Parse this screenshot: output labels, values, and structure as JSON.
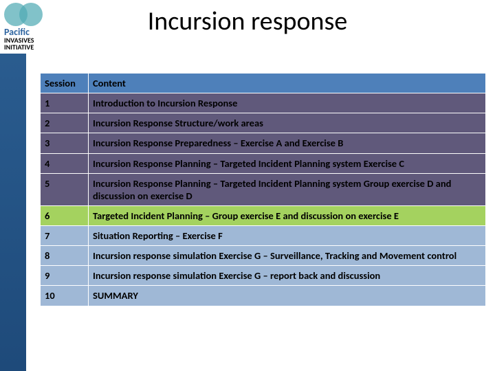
{
  "title": "Incursion response",
  "logo": {
    "brand_line1": "Pacific",
    "brand_line2": "INVASIVES",
    "brand_line3": "INITIATIVE"
  },
  "table": {
    "header": {
      "session": "Session",
      "content": "Content"
    },
    "rows": [
      {
        "n": "1",
        "c": "Introduction to Incursion Response",
        "style": "dark"
      },
      {
        "n": "2",
        "c": "Incursion Response Structure/work areas",
        "style": "dark"
      },
      {
        "n": "3",
        "c": "Incursion Response Preparedness – Exercise A and Exercise B",
        "style": "dark"
      },
      {
        "n": "4",
        "c": "Incursion Response Planning – Targeted Incident Planning system Exercise C",
        "style": "dark"
      },
      {
        "n": "5",
        "c": "Incursion Response Planning – Targeted Incident Planning system Group exercise D and discussion on exercise D",
        "style": "dark"
      },
      {
        "n": "6",
        "c": "Targeted Incident Planning – Group exercise E and discussion on exercise E",
        "style": "green"
      },
      {
        "n": "7",
        "c": "Situation Reporting – Exercise F",
        "style": "lightblue"
      },
      {
        "n": "8",
        "c": "Incursion response simulation Exercise G – Surveillance, Tracking and Movement control",
        "style": "lightblue"
      },
      {
        "n": "9",
        "c": "Incursion response simulation Exercise G – report back and discussion",
        "style": "lightblue"
      },
      {
        "n": "10",
        "c": "SUMMARY",
        "style": "lightblue"
      }
    ],
    "colors": {
      "header_bg": "#4e80ba",
      "dark_bg": "#60597b",
      "green_bg": "#a4d25f",
      "lightblue_bg": "#9fb8d6",
      "border": "#ffffff"
    }
  }
}
